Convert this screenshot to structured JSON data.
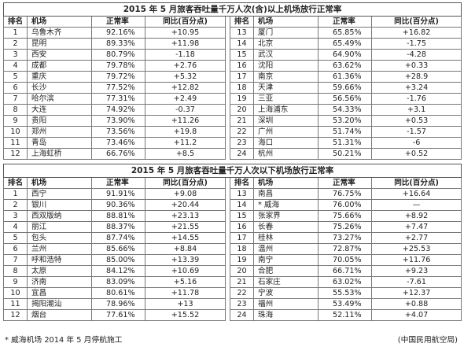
{
  "tables": [
    {
      "title": "2015 年 5 月旅客吞吐量千万人次(含)以上机场放行正常率",
      "headers": [
        "排名",
        "机场",
        "正常率",
        "同比(百分点)",
        "排名",
        "机场",
        "正常率",
        "同比(百分点)"
      ],
      "rows": [
        [
          [
            "1",
            "乌鲁木齐",
            "92.16%",
            "+10.95"
          ],
          [
            "13",
            "厦门",
            "65.85%",
            "+16.82"
          ]
        ],
        [
          [
            "2",
            "昆明",
            "89.33%",
            "+11.98"
          ],
          [
            "14",
            "北京",
            "65.49%",
            "-1.75"
          ]
        ],
        [
          [
            "3",
            "西安",
            "80.79%",
            "-1.18"
          ],
          [
            "15",
            "武汉",
            "64.90%",
            "-4.28"
          ]
        ],
        [
          [
            "4",
            "成都",
            "79.78%",
            "+2.76"
          ],
          [
            "16",
            "沈阳",
            "63.62%",
            "+0.33"
          ]
        ],
        [
          [
            "5",
            "重庆",
            "79.72%",
            "+5.32"
          ],
          [
            "17",
            "南京",
            "61.36%",
            "+28.9"
          ]
        ],
        [
          [
            "6",
            "长沙",
            "77.52%",
            "+12.82"
          ],
          [
            "18",
            "天津",
            "59.66%",
            "+3.24"
          ]
        ],
        [
          [
            "7",
            "哈尔滨",
            "77.31%",
            "+2.49"
          ],
          [
            "19",
            "三亚",
            "56.56%",
            "-1.76"
          ]
        ],
        [
          [
            "8",
            "大连",
            "74.92%",
            "-0.37"
          ],
          [
            "20",
            "上海浦东",
            "54.33%",
            "+3.1"
          ]
        ],
        [
          [
            "9",
            "贵阳",
            "73.90%",
            "+11.26"
          ],
          [
            "21",
            "深圳",
            "53.20%",
            "+0.53"
          ]
        ],
        [
          [
            "10",
            "郑州",
            "73.56%",
            "+19.8"
          ],
          [
            "22",
            "广州",
            "51.74%",
            "-1.57"
          ]
        ],
        [
          [
            "11",
            "青岛",
            "73.46%",
            "+11.2"
          ],
          [
            "23",
            "海口",
            "51.31%",
            "-6"
          ]
        ],
        [
          [
            "12",
            "上海虹桥",
            "66.76%",
            "+8.5"
          ],
          [
            "24",
            "杭州",
            "50.21%",
            "+0.52"
          ]
        ]
      ]
    },
    {
      "title": "2015 年 5 月旅客吞吐量千万人次以下机场放行正常率",
      "headers": [
        "排名",
        "机场",
        "正常率",
        "同比(百分点)",
        "排名",
        "机场",
        "正常率",
        "同比(百分点)"
      ],
      "rows": [
        [
          [
            "1",
            "西宁",
            "91.91%",
            "+9.08"
          ],
          [
            "13",
            "南昌",
            "76.75%",
            "+16.64"
          ]
        ],
        [
          [
            "2",
            "银川",
            "90.36%",
            "+20.44"
          ],
          [
            "14",
            "* 威海",
            "76.00%",
            "—"
          ]
        ],
        [
          [
            "3",
            "西双版纳",
            "88.81%",
            "+23.13"
          ],
          [
            "15",
            "张家界",
            "75.66%",
            "+8.92"
          ]
        ],
        [
          [
            "4",
            "丽江",
            "88.37%",
            "+21.55"
          ],
          [
            "16",
            "长春",
            "75.26%",
            "+7.47"
          ]
        ],
        [
          [
            "5",
            "包头",
            "87.74%",
            "+14.55"
          ],
          [
            "17",
            "桂林",
            "73.27%",
            "+2.77"
          ]
        ],
        [
          [
            "6",
            "兰州",
            "85.66%",
            "+8.84"
          ],
          [
            "18",
            "温州",
            "72.87%",
            "+25.53"
          ]
        ],
        [
          [
            "7",
            "呼和浩特",
            "85.00%",
            "+13.39"
          ],
          [
            "19",
            "南宁",
            "70.05%",
            "+11.76"
          ]
        ],
        [
          [
            "8",
            "太原",
            "84.12%",
            "+10.69"
          ],
          [
            "20",
            "合肥",
            "66.71%",
            "+9.23"
          ]
        ],
        [
          [
            "9",
            "济南",
            "83.09%",
            "+5.16"
          ],
          [
            "21",
            "石家庄",
            "63.02%",
            "-7.61"
          ]
        ],
        [
          [
            "10",
            "宜昌",
            "80.61%",
            "+11.78"
          ],
          [
            "22",
            "宁波",
            "55.53%",
            "+12.37"
          ]
        ],
        [
          [
            "11",
            "揭阳潮汕",
            "78.96%",
            "+13"
          ],
          [
            "23",
            "福州",
            "53.49%",
            "+0.88"
          ]
        ],
        [
          [
            "12",
            "烟台",
            "77.61%",
            "+15.52"
          ],
          [
            "24",
            "珠海",
            "52.11%",
            "+4.07"
          ]
        ]
      ]
    }
  ],
  "footnote": "* 威海机场 2014 年 5 月停航施工",
  "source": "(中国民用航空局)"
}
